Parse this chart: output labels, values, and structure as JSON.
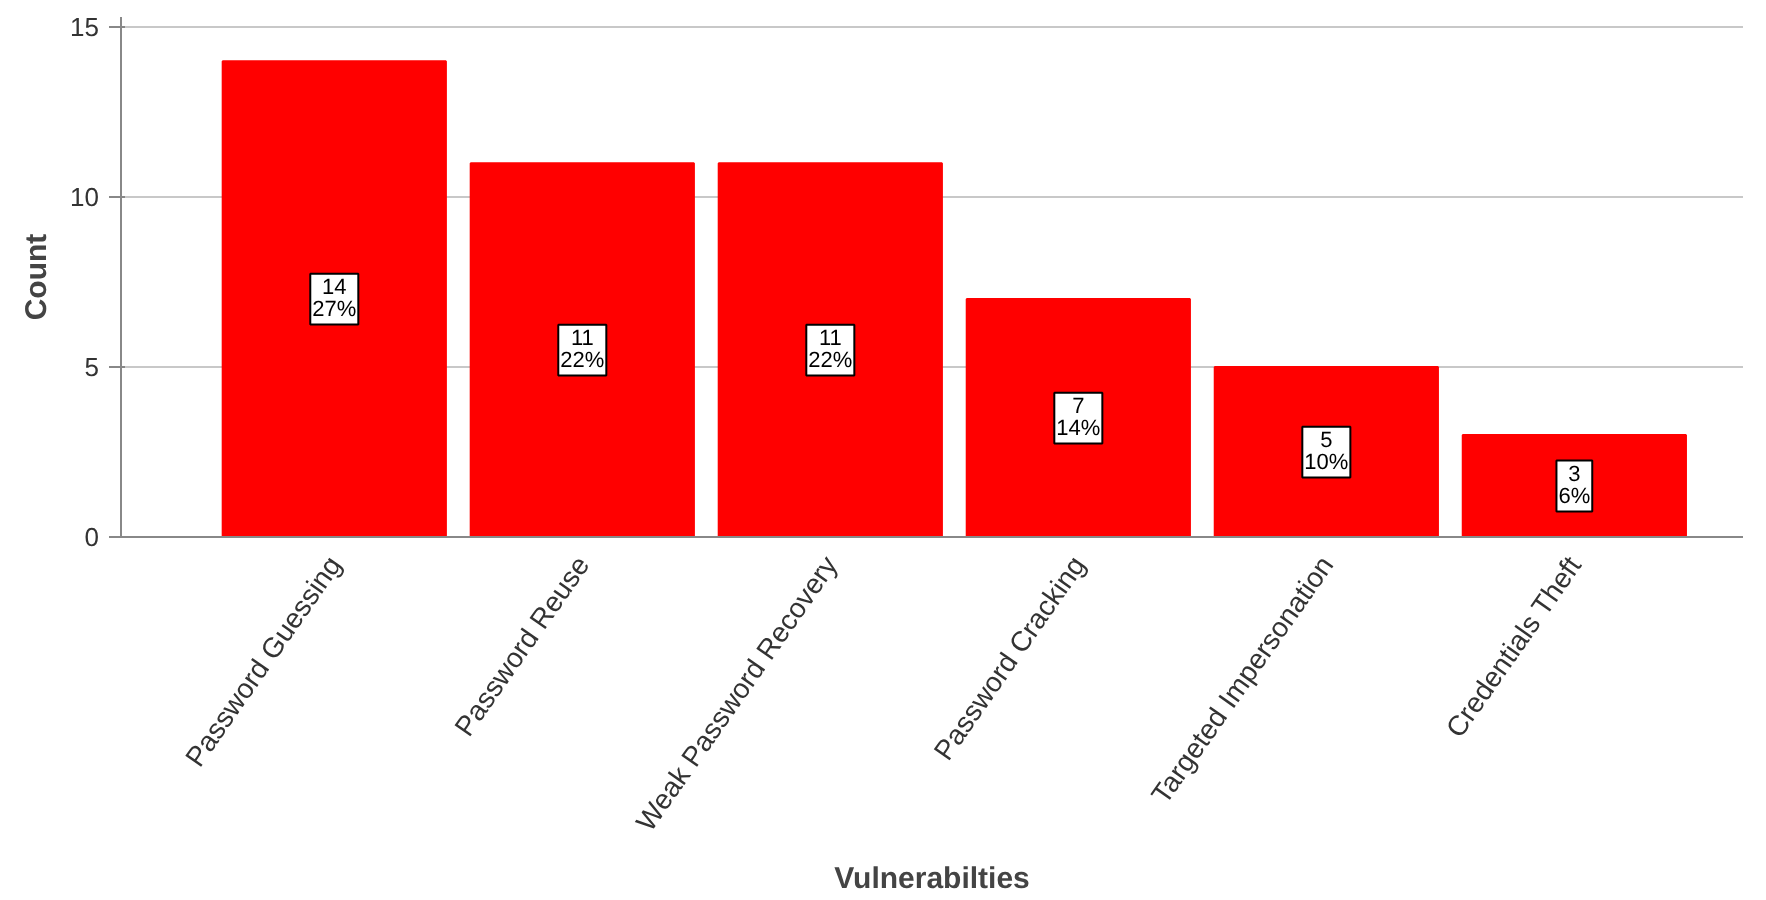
{
  "chart_data": {
    "type": "bar",
    "xlabel": "Vulnerabilties",
    "ylabel": "Count",
    "categories": [
      "Password Guessing",
      "Password Reuse",
      "Weak Password Recovery",
      "Password Cracking",
      "Targeted Impersonation",
      "Credentials Theft"
    ],
    "values": [
      14,
      11,
      11,
      7,
      5,
      3
    ],
    "color": "#ff0000",
    "value_labels": [
      "14\n27%",
      "11\n22%",
      "11\n22%",
      "7\n14%",
      "5\n10%",
      "3\n6%"
    ],
    "ylim": [
      0,
      15.3
    ],
    "yticks": [
      0,
      5,
      10,
      15
    ],
    "grid": "y"
  }
}
